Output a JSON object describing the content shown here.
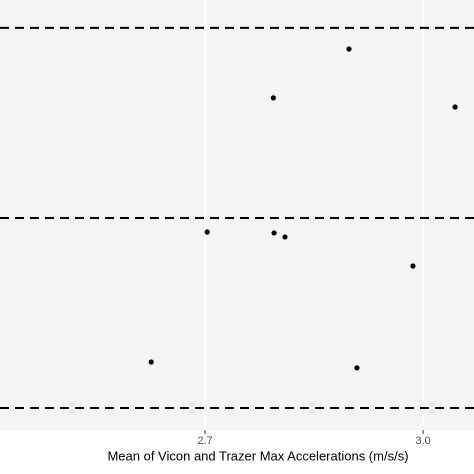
{
  "chart_data": {
    "type": "scatter",
    "x_label": "Mean of Vicon and Trazer Max Accelerations (m/s/s)",
    "x": [
      2.898,
      2.794,
      3.044,
      2.703,
      2.795,
      2.81,
      2.986,
      2.626,
      2.909
    ],
    "values": [
      0.889,
      0.632,
      0.584,
      -0.074,
      -0.079,
      -0.1,
      -0.253,
      -0.758,
      -0.789
    ],
    "color": "#000000",
    "hlines": [
      1.0,
      0.0,
      -1.0
    ],
    "xlim": [
      2.418,
      3.07
    ],
    "ylim": [
      -1.116,
      1.147
    ],
    "xticks": [
      {
        "value": 2.7,
        "label": "2.7"
      },
      {
        "value": 3,
        "label": "3.0"
      }
    ],
    "grid": true
  }
}
